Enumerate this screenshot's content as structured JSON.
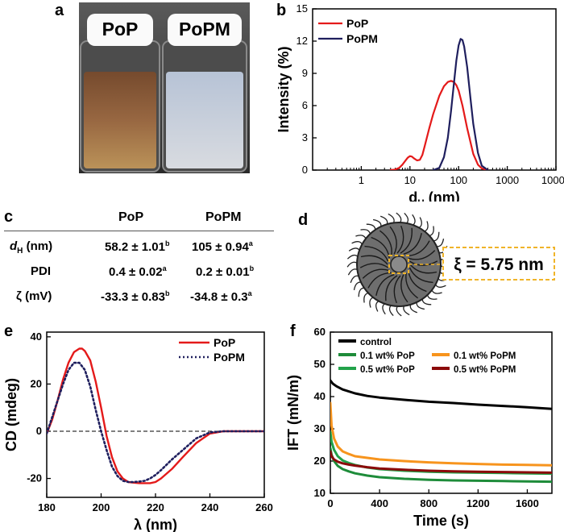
{
  "labels": {
    "a": "a",
    "b": "b",
    "c": "c",
    "d": "d",
    "e": "e",
    "f": "f"
  },
  "photo": {
    "left_label": "PoP",
    "right_label": "PoPM"
  },
  "colors": {
    "pop": "#e41a1a",
    "popm": "#1f1f5e",
    "control": "#000000",
    "g01": "#1e8c3a",
    "o01": "#f7941d",
    "g05": "#22a24a",
    "r05": "#8b0a0a"
  },
  "table": {
    "headers": [
      "PoP",
      "PoPM"
    ],
    "rows": [
      {
        "label": "d",
        "label_sub": "H",
        "label_unit": " (nm)",
        "pop": "58.2 ± 1.01",
        "pop_sup": "b",
        "popm": "105 ± 0.94",
        "popm_sup": "a"
      },
      {
        "label": "PDI",
        "label_sub": "",
        "label_unit": "",
        "pop": "0.4 ± 0.02",
        "pop_sup": "a",
        "popm": "0.2 ± 0.01",
        "popm_sup": "b"
      },
      {
        "label": "ζ (mV)",
        "label_sub": "",
        "label_unit": "",
        "pop": "-33.3 ± 0.83",
        "pop_sup": "b",
        "popm": "-34.8 ± 0.3",
        "popm_sup": "a"
      }
    ]
  },
  "micelle": {
    "xi_label": "ξ = 5.75 nm"
  },
  "chart_data": [
    {
      "id": "b",
      "type": "line",
      "xlabel": "d",
      "xlabel_sub": "H",
      "xlabel_unit": " (nm)",
      "ylabel": "Intensity (%)",
      "xscale": "log",
      "xlim": [
        0.1,
        10000
      ],
      "ylim": [
        0,
        15
      ],
      "xticks": [
        "1",
        "10",
        "100",
        "1000",
        "10000"
      ],
      "yticks": [
        "0",
        "3",
        "6",
        "9",
        "12",
        "15"
      ],
      "legend": [
        "PoP",
        "PoPM"
      ],
      "series": [
        {
          "name": "PoP",
          "x": [
            4,
            5,
            6,
            7,
            8,
            9,
            10,
            11,
            12,
            14,
            16,
            18,
            20,
            25,
            30,
            40,
            50,
            60,
            70,
            80,
            90,
            100,
            120,
            150,
            200,
            250,
            300,
            400
          ],
          "y": [
            0,
            0.05,
            0.2,
            0.5,
            0.85,
            1.15,
            1.3,
            1.25,
            1.1,
            0.9,
            0.95,
            1.4,
            2.2,
            3.9,
            5.2,
            6.9,
            7.8,
            8.2,
            8.3,
            8.2,
            7.9,
            7.4,
            6.0,
            3.9,
            1.5,
            0.5,
            0.15,
            0
          ]
        },
        {
          "name": "PoPM",
          "x": [
            30,
            40,
            50,
            60,
            70,
            80,
            90,
            100,
            110,
            120,
            130,
            150,
            180,
            200,
            250,
            300,
            400
          ],
          "y": [
            0,
            0.2,
            1.2,
            3.0,
            5.5,
            8.0,
            10.2,
            11.6,
            12.2,
            12.1,
            11.5,
            9.6,
            6.2,
            4.3,
            1.6,
            0.4,
            0
          ]
        }
      ]
    },
    {
      "id": "e",
      "type": "line",
      "xlabel": "λ (nm)",
      "ylabel": "CD (mdeg)",
      "xlim": [
        180,
        260
      ],
      "ylim": [
        -28,
        42
      ],
      "xticks": [
        "180",
        "200",
        "220",
        "240",
        "260"
      ],
      "yticks": [
        "-20",
        "0",
        "20",
        "40"
      ],
      "legend": [
        "PoP",
        "PoPM"
      ],
      "series": [
        {
          "name": "PoP",
          "x": [
            180,
            182,
            184,
            186,
            188,
            190,
            192,
            193,
            194,
            196,
            198,
            200,
            202,
            204,
            206,
            208,
            210,
            212,
            214,
            216,
            218,
            220,
            222,
            226,
            230,
            235,
            240,
            245,
            250,
            255,
            260
          ],
          "y": [
            -1,
            5,
            13,
            22,
            29,
            33.5,
            35,
            35,
            34,
            30,
            21,
            10,
            -2,
            -11,
            -17,
            -20,
            -21.5,
            -21.8,
            -22,
            -22,
            -22,
            -21.5,
            -20,
            -16,
            -11,
            -5,
            -1,
            0,
            0,
            0,
            0
          ]
        },
        {
          "name": "PoPM",
          "x": [
            180,
            182,
            184,
            186,
            188,
            190,
            192,
            194,
            196,
            198,
            200,
            202,
            204,
            206,
            208,
            210,
            212,
            214,
            216,
            218,
            220,
            222,
            226,
            230,
            235,
            240,
            245,
            250,
            255,
            260
          ],
          "y": [
            -1,
            6,
            13,
            20,
            26,
            29,
            29,
            26,
            19,
            9,
            0,
            -8,
            -15,
            -19,
            -21,
            -21.5,
            -21.5,
            -21.3,
            -21,
            -20,
            -18.5,
            -16.5,
            -12,
            -8,
            -3,
            -0.5,
            0,
            0,
            0,
            0
          ]
        }
      ]
    },
    {
      "id": "f",
      "type": "line",
      "xlabel": "Time (s)",
      "ylabel": "IFT (mN/m)",
      "xlim": [
        0,
        1800
      ],
      "ylim": [
        10,
        60
      ],
      "xticks": [
        "0",
        "400",
        "800",
        "1200",
        "1600"
      ],
      "yticks": [
        "10",
        "20",
        "30",
        "40",
        "50",
        "60"
      ],
      "legend": [
        "control",
        "0.1 wt% PoP",
        "0.1 wt% PoPM",
        "0.5 wt% PoP",
        "0.5 wt% PoPM"
      ],
      "series": [
        {
          "name": "control",
          "x": [
            0,
            20,
            50,
            100,
            200,
            300,
            400,
            600,
            800,
            1000,
            1200,
            1400,
            1600,
            1800
          ],
          "y": [
            45,
            44,
            43.2,
            42.2,
            41,
            40.2,
            39.7,
            39,
            38.4,
            38,
            37.5,
            37.1,
            36.7,
            36.2
          ]
        },
        {
          "name": "0.1 wt% PoP",
          "x": [
            0,
            10,
            30,
            60,
            100,
            150,
            200,
            300,
            400,
            600,
            800,
            1000,
            1200,
            1400,
            1600,
            1800
          ],
          "y": [
            24,
            22,
            20,
            18.5,
            17.5,
            16.8,
            16.2,
            15.5,
            15,
            14.5,
            14.2,
            14,
            13.9,
            13.8,
            13.7,
            13.6
          ]
        },
        {
          "name": "0.1 wt% PoPM",
          "x": [
            0,
            10,
            30,
            60,
            100,
            150,
            200,
            300,
            400,
            600,
            800,
            1000,
            1200,
            1400,
            1600,
            1800
          ],
          "y": [
            38,
            31,
            27,
            24.5,
            23,
            22.2,
            21.5,
            21,
            20.5,
            20,
            19.6,
            19.3,
            19.1,
            18.9,
            18.8,
            18.7
          ]
        },
        {
          "name": "0.5 wt% PoP",
          "x": [
            0,
            10,
            30,
            60,
            100,
            150,
            200,
            300,
            400,
            600,
            800,
            1000,
            1200,
            1400,
            1600,
            1800
          ],
          "y": [
            29,
            26,
            23.5,
            21.5,
            20.2,
            19.4,
            18.8,
            18,
            17.5,
            17,
            16.7,
            16.5,
            16.4,
            16.3,
            16.2,
            16.1
          ]
        },
        {
          "name": "0.5 wt% PoPM",
          "x": [
            0,
            10,
            30,
            60,
            100,
            150,
            200,
            300,
            400,
            600,
            800,
            1000,
            1200,
            1400,
            1600,
            1800
          ],
          "y": [
            23,
            21.5,
            20.5,
            19.8,
            19.3,
            18.9,
            18.6,
            18.1,
            17.7,
            17.3,
            17,
            16.8,
            16.7,
            16.6,
            16.5,
            16.4
          ]
        }
      ]
    }
  ]
}
